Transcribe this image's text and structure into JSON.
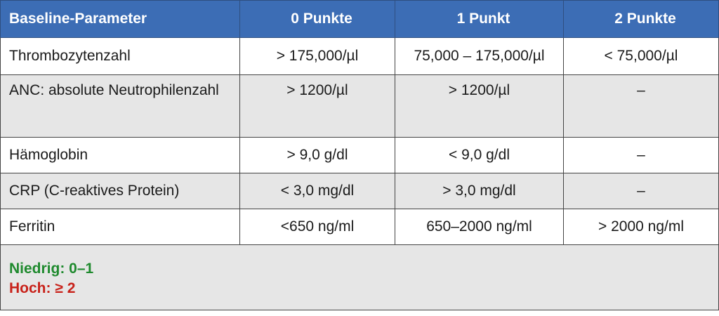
{
  "table": {
    "headers": [
      "Baseline-Parameter",
      "0 Punkte",
      "1 Punkt",
      "2 Punkte"
    ],
    "rows": [
      [
        "Thrombozytenzahl",
        "> 175,000/µl",
        "75,000 – 175,000/µl",
        "< 75,000/µl"
      ],
      [
        "ANC: absolute Neutrophilenzahl",
        "> 1200/µl",
        "> 1200/µl",
        "–"
      ],
      [
        "Hämoglobin",
        "> 9,0 g/dl",
        "< 9,0 g/dl",
        "–"
      ],
      [
        "CRP (C-reaktives Protein)",
        "< 3,0 mg/dl",
        "> 3,0 mg/dl",
        "–"
      ],
      [
        "Ferritin",
        "<650 ng/ml",
        "650–2000 ng/ml",
        "> 2000 ng/ml"
      ]
    ],
    "summary": {
      "low": "Niedrig: 0–1",
      "high": "Hoch: ≥ 2"
    }
  },
  "colors": {
    "header_bg": "#3c6db5",
    "alt_row_bg": "#e6e6e6",
    "low_text": "#1f8a2e",
    "high_text": "#c8221a"
  }
}
